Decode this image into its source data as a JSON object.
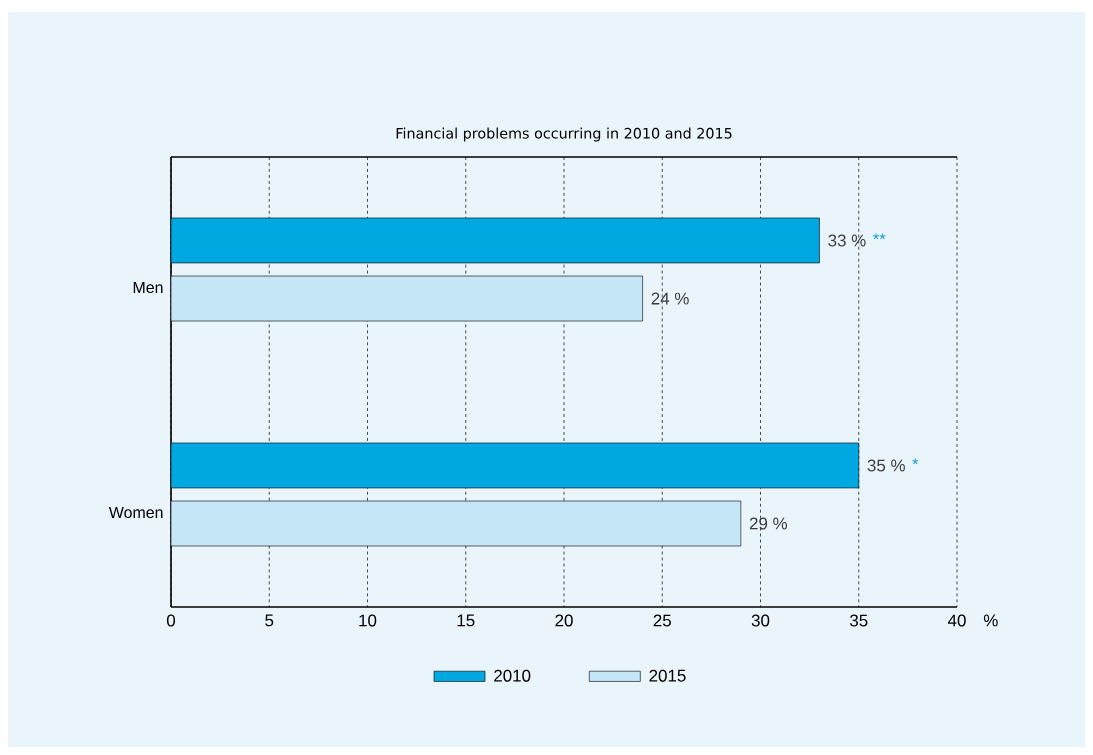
{
  "chart_data": {
    "type": "bar",
    "orientation": "horizontal",
    "title": "Financial problems occurring in 2010 and 2015",
    "xlabel": "%",
    "categories": [
      "Men",
      "Women"
    ],
    "series": [
      {
        "name": "2010",
        "color": "#00a8e1",
        "values": [
          33,
          35
        ],
        "value_labels": [
          "33 %",
          "35 %"
        ]
      },
      {
        "name": "2015",
        "color": "#c4e6f7",
        "values": [
          24,
          29
        ],
        "value_labels": [
          "24 %",
          "29 %"
        ]
      }
    ],
    "annotations": [
      "**",
      "*"
    ],
    "xlim": [
      0,
      40
    ],
    "xticks": [
      0,
      5,
      10,
      15,
      20,
      25,
      30,
      35,
      40
    ],
    "grid": "x",
    "legend": "bottom"
  }
}
